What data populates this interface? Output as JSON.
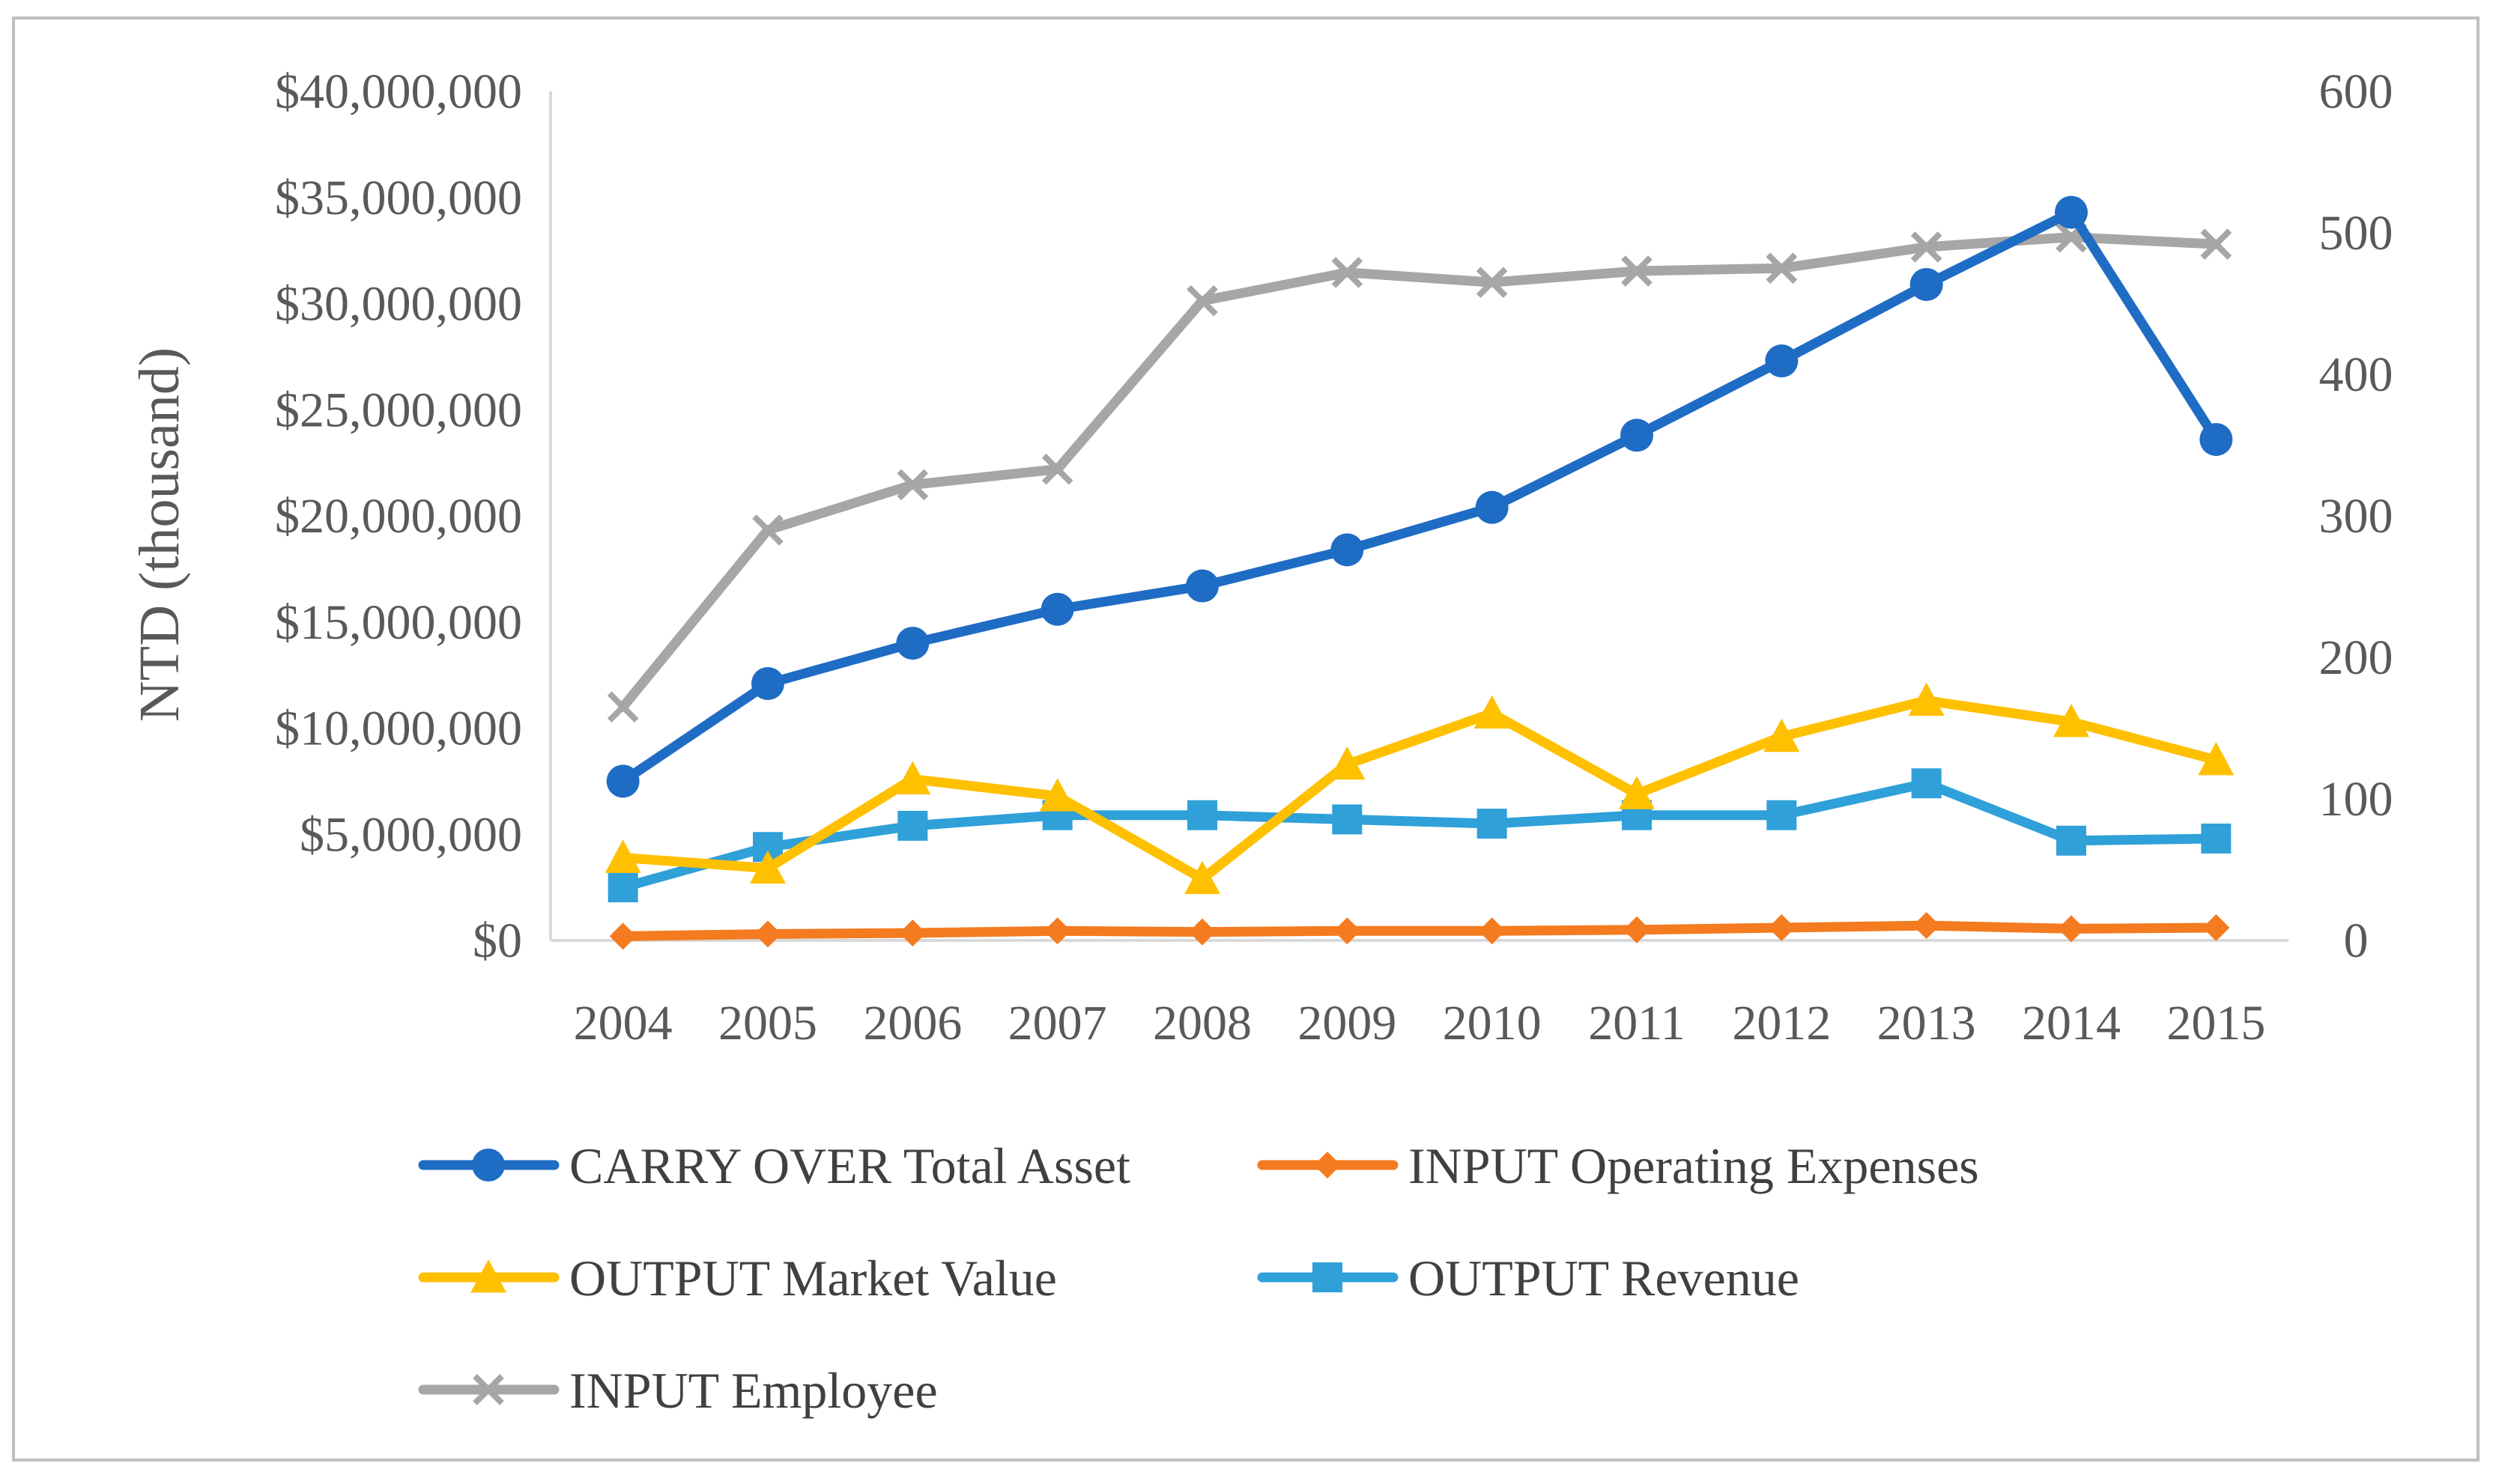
{
  "chart_data": {
    "type": "line",
    "title": "",
    "xlabel": "",
    "ylabel": "NTD (thousand)",
    "y2label": "",
    "categories": [
      "2004",
      "2005",
      "2006",
      "2007",
      "2008",
      "2009",
      "2010",
      "2011",
      "2012",
      "2013",
      "2014",
      "2015"
    ],
    "ylim": [
      0,
      40000000
    ],
    "y2lim": [
      0,
      600
    ],
    "y_ticks": [
      {
        "value": 0,
        "label": "$0"
      },
      {
        "value": 5000000,
        "label": "$5,000,000"
      },
      {
        "value": 10000000,
        "label": "$10,000,000"
      },
      {
        "value": 15000000,
        "label": "$15,000,000"
      },
      {
        "value": 20000000,
        "label": "$20,000,000"
      },
      {
        "value": 25000000,
        "label": "$25,000,000"
      },
      {
        "value": 30000000,
        "label": "$30,000,000"
      },
      {
        "value": 35000000,
        "label": "$35,000,000"
      },
      {
        "value": 40000000,
        "label": "$40,000,000"
      }
    ],
    "y2_ticks": [
      {
        "value": 0,
        "label": "0"
      },
      {
        "value": 100,
        "label": "100"
      },
      {
        "value": 200,
        "label": "200"
      },
      {
        "value": 300,
        "label": "300"
      },
      {
        "value": 400,
        "label": "400"
      },
      {
        "value": 500,
        "label": "500"
      },
      {
        "value": 600,
        "label": "600"
      }
    ],
    "grid": false,
    "legend_position": "bottom",
    "series": [
      {
        "name": "CARRY OVER Total Asset",
        "axis": "left",
        "color": "#1f6cc5",
        "marker": "circle",
        "values": [
          7500000,
          12100000,
          14000000,
          15600000,
          16700000,
          18400000,
          20400000,
          23800000,
          27300000,
          30900000,
          34300000,
          23600000
        ]
      },
      {
        "name": "INPUT Operating Expenses",
        "axis": "left",
        "color": "#f47b20",
        "marker": "diamond",
        "values": [
          200000,
          300000,
          350000,
          450000,
          400000,
          450000,
          450000,
          500000,
          600000,
          700000,
          550000,
          600000
        ]
      },
      {
        "name": "OUTPUT Market Value",
        "axis": "left",
        "color": "#ffc000",
        "marker": "triangle",
        "values": [
          3900000,
          3400000,
          7600000,
          6800000,
          2900000,
          8300000,
          10700000,
          6900000,
          9600000,
          11300000,
          10300000,
          8500000
        ]
      },
      {
        "name": "OUTPUT Revenue",
        "axis": "left",
        "color": "#2fa0d8",
        "marker": "square",
        "values": [
          2500000,
          4400000,
          5400000,
          5900000,
          5900000,
          5700000,
          5500000,
          5900000,
          5900000,
          7400000,
          4700000,
          4800000
        ]
      },
      {
        "name": "INPUT Employee",
        "axis": "right",
        "color": "#a6a6a6",
        "marker": "x",
        "values": [
          165,
          290,
          322,
          333,
          452,
          472,
          465,
          473,
          475,
          490,
          497,
          492
        ]
      }
    ]
  }
}
